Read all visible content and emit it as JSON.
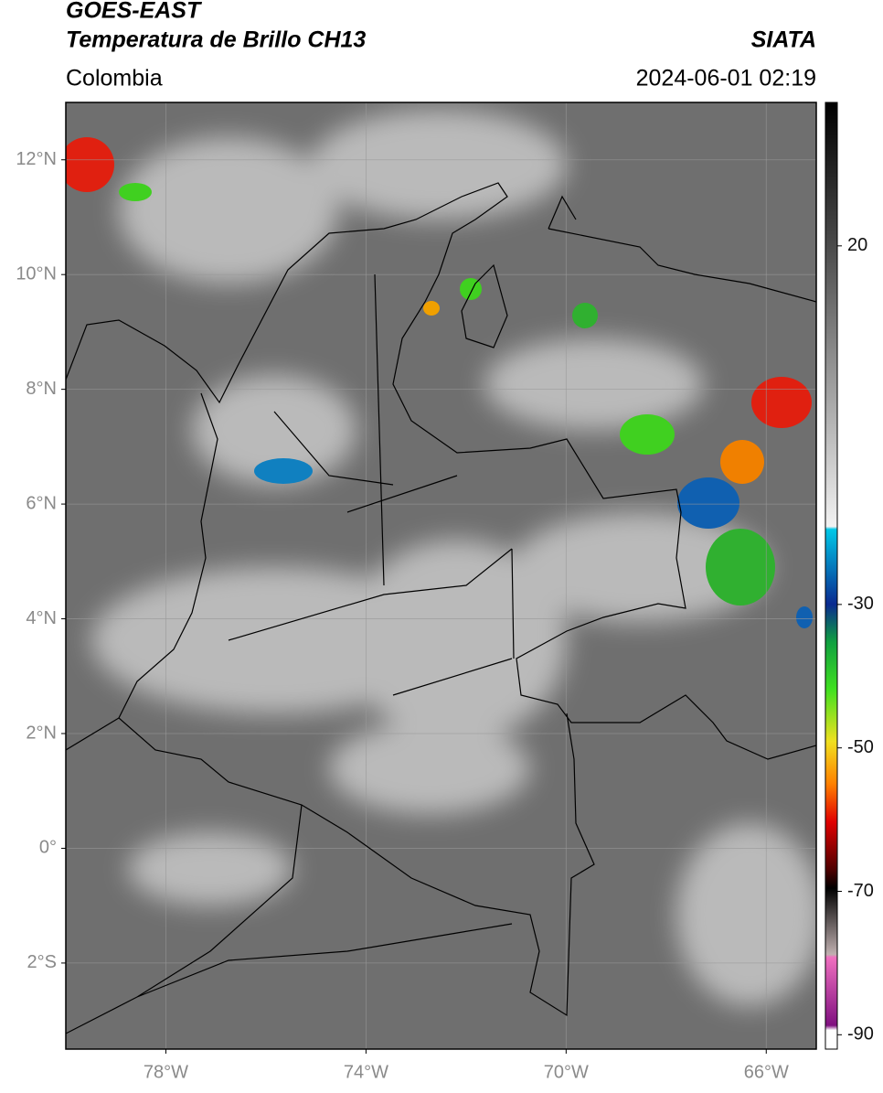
{
  "header": {
    "title": "GOES-EAST",
    "subtitle": "Temperatura de Brillo CH13",
    "region": "Colombia",
    "source": "SIATA",
    "datetime": "2024-06-01 02:19"
  },
  "map": {
    "xlim": [
      -80,
      -65
    ],
    "ylim": [
      -3.5,
      13
    ],
    "grid": true,
    "xticks": [
      {
        "value": -78,
        "label": "78°W"
      },
      {
        "value": -74,
        "label": "74°W"
      },
      {
        "value": -70,
        "label": "70°W"
      },
      {
        "value": -66,
        "label": "66°W"
      }
    ],
    "yticks": [
      {
        "value": 12,
        "label": "12°N"
      },
      {
        "value": 10,
        "label": "10°N"
      },
      {
        "value": 8,
        "label": "8°N"
      },
      {
        "value": 6,
        "label": "6°N"
      },
      {
        "value": 4,
        "label": "4°N"
      },
      {
        "value": 2,
        "label": "2°N"
      },
      {
        "value": 0,
        "label": "0°"
      },
      {
        "value": -2,
        "label": "2°S"
      }
    ]
  },
  "colorbar": {
    "clim": [
      -92,
      40
    ],
    "ticks": [
      20,
      -30,
      -50,
      -70,
      -90
    ]
  }
}
